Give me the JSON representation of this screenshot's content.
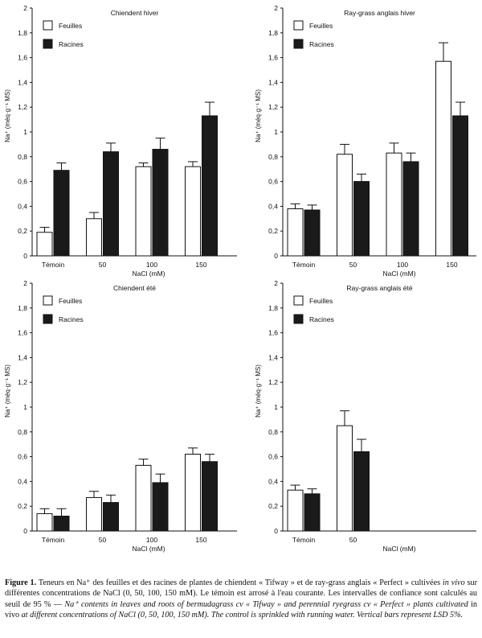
{
  "chart_data": [
    {
      "type": "bar",
      "title": "Chiendent hiver",
      "ylabel": "Na⁺ (méq·g⁻¹ MS)",
      "xlabel": "NaCl (mM)",
      "ylim": [
        0,
        2
      ],
      "yticks": [
        "0",
        "0,2",
        "0,4",
        "0,6",
        "0,8",
        "1",
        "1,2",
        "1,4",
        "1,6",
        "1,8",
        "2"
      ],
      "categories": [
        "Témoin",
        "50",
        "100",
        "150"
      ],
      "legend_position": "top-left",
      "series": [
        {
          "name": "Feuilles",
          "color": "#ffffff",
          "values": [
            0.19,
            0.3,
            0.72,
            0.72
          ],
          "errors": [
            0.04,
            0.05,
            0.03,
            0.04
          ]
        },
        {
          "name": "Racines",
          "color": "#1a1a1a",
          "values": [
            0.69,
            0.84,
            0.86,
            1.13
          ],
          "errors": [
            0.06,
            0.07,
            0.09,
            0.11
          ]
        }
      ]
    },
    {
      "type": "bar",
      "title": "Ray-grass anglais hiver",
      "ylabel": "Na⁺ (méq·g⁻¹ MS)",
      "xlabel": "NaCl (mM)",
      "ylim": [
        0,
        2
      ],
      "yticks": [
        "0",
        "0,2",
        "0,4",
        "0,6",
        "0,8",
        "1",
        "1,2",
        "1,4",
        "1,6",
        "1,8",
        "2"
      ],
      "categories": [
        "Témoin",
        "50",
        "100",
        "150"
      ],
      "legend_position": "top-left",
      "series": [
        {
          "name": "Feuilles",
          "color": "#ffffff",
          "values": [
            0.38,
            0.82,
            0.83,
            1.57
          ],
          "errors": [
            0.04,
            0.08,
            0.08,
            0.15
          ]
        },
        {
          "name": "Racines",
          "color": "#1a1a1a",
          "values": [
            0.37,
            0.6,
            0.76,
            1.13
          ],
          "errors": [
            0.04,
            0.06,
            0.07,
            0.11
          ]
        }
      ]
    },
    {
      "type": "bar",
      "title": "Chiendent été",
      "ylabel": "Na⁺ (méq·g⁻¹ MS)",
      "xlabel": "NaCl (mM)",
      "ylim": [
        0,
        2
      ],
      "yticks": [
        "0",
        "0,2",
        "0,4",
        "0,6",
        "0,8",
        "1",
        "1,2",
        "1,4",
        "1,6",
        "1,8",
        "2"
      ],
      "categories": [
        "Témoin",
        "50",
        "100",
        "150"
      ],
      "legend_position": "top-left",
      "series": [
        {
          "name": "Feuilles",
          "color": "#ffffff",
          "values": [
            0.14,
            0.27,
            0.53,
            0.62
          ],
          "errors": [
            0.04,
            0.05,
            0.05,
            0.05
          ]
        },
        {
          "name": "Racines",
          "color": "#1a1a1a",
          "values": [
            0.12,
            0.23,
            0.39,
            0.56
          ],
          "errors": [
            0.06,
            0.06,
            0.07,
            0.06
          ]
        }
      ]
    },
    {
      "type": "bar",
      "title": "Ray-grass anglais été",
      "ylabel": "Na⁺ (méq·g⁻¹ MS)",
      "xlabel": "NaCl (mM)",
      "ylim": [
        0,
        2
      ],
      "yticks": [
        "0",
        "0,2",
        "0,4",
        "0,6",
        "0,8",
        "1",
        "1,2",
        "1,4",
        "1,6",
        "1,8",
        "2"
      ],
      "categories": [
        "Témoin",
        "50"
      ],
      "categories_slots": 4,
      "legend_position": "top-left",
      "series": [
        {
          "name": "Feuilles",
          "color": "#ffffff",
          "values": [
            0.33,
            0.85
          ],
          "errors": [
            0.04,
            0.12
          ]
        },
        {
          "name": "Racines",
          "color": "#1a1a1a",
          "values": [
            0.3,
            0.64
          ],
          "errors": [
            0.04,
            0.1
          ]
        }
      ]
    }
  ],
  "caption": {
    "label": "Figure 1.",
    "part1": " Teneurs en Na⁺ des feuilles et des racines de plantes de chiendent « Tifway » et de ray-grass anglais « Perfect » cultivées ",
    "invivo": "in vivo",
    "part2": " sur différentes concentrations de NaCl (0, 50, 100, 150 mM). Le témoin est arrosé à l'eau courante. Les intervalles de confiance sont calculés au seuil de 95 % — ",
    "english": "Na⁺ contents in leaves and roots of bermudagrass cv « Tifway » and perennial ryegrass cv « Perfect » plants cultivated",
    "part3": " in vivo ",
    "english2": "at different concentrations of NaCl (0, 50, 100, 150 mM). The control is sprinkled with running water. Vertical bars represent LSD 5%."
  }
}
